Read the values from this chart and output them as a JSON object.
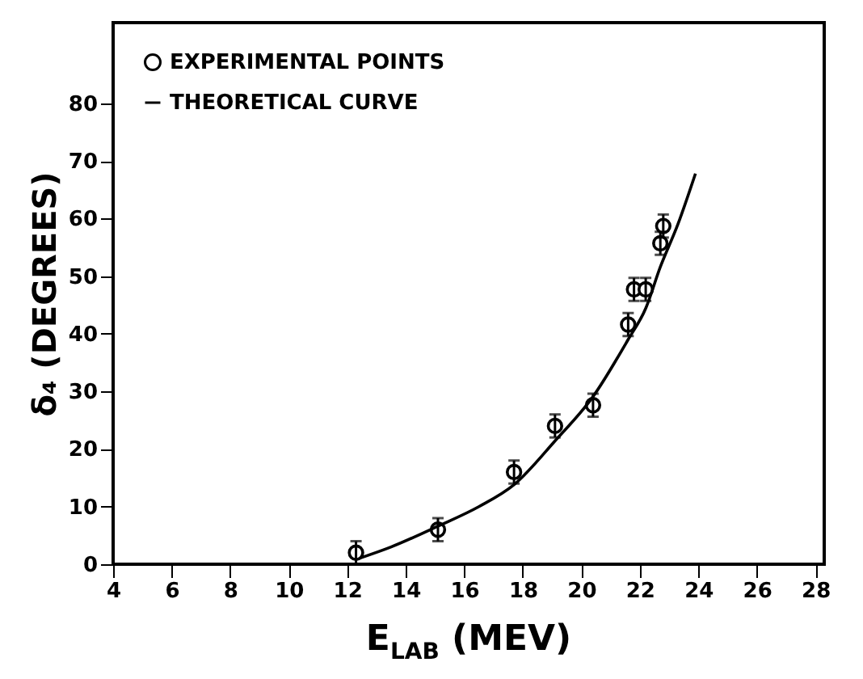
{
  "chart_data": {
    "type": "scatter",
    "xlabel": "E$_{LAB}$ (MEV)",
    "ylabel": "δ₄ (DEGREES)",
    "xlim": [
      4,
      28.3
    ],
    "ylim": [
      0,
      94
    ],
    "xticks": [
      4,
      6,
      8,
      10,
      12,
      14,
      16,
      18,
      20,
      22,
      24,
      26,
      28
    ],
    "yticks": [
      0,
      10,
      20,
      30,
      40,
      50,
      60,
      70,
      80
    ],
    "grid": false,
    "legend": "top left",
    "series": [
      {
        "name": "EXPERIMENTAL POINTS",
        "color": "#000000",
        "marker": "circle",
        "x": [
          12.3,
          15.1,
          17.7,
          19.1,
          20.4,
          21.6,
          21.8,
          22.2,
          22.7,
          22.8
        ],
        "values": [
          2,
          6,
          16,
          24,
          27.6,
          41.6,
          47.7,
          47.7,
          55.7,
          58.7
        ],
        "errors": [
          2,
          2,
          2,
          2,
          2,
          2,
          2,
          2,
          2,
          2
        ]
      },
      {
        "name": "THEORETICAL CURVE",
        "type": "line",
        "color": "#000000",
        "line_style": "solid",
        "x": [
          12.4,
          13.5,
          15.1,
          16.5,
          17.7,
          19.1,
          20.4,
          21.6,
          22.2,
          22.7,
          23.3,
          23.9
        ],
        "values": [
          1,
          3,
          6.6,
          10,
          13.8,
          21.4,
          29.1,
          39,
          44.4,
          51.6,
          59,
          67.8
        ]
      }
    ]
  }
}
